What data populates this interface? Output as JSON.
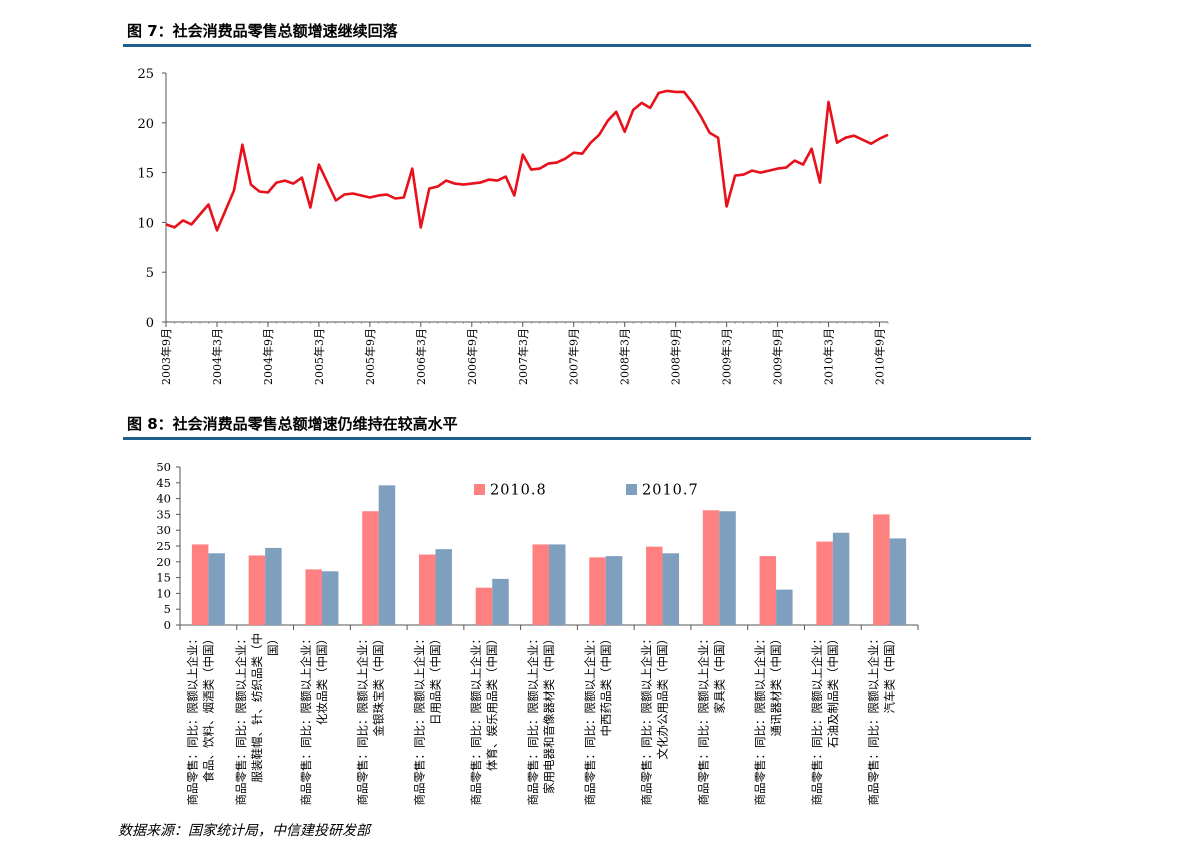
{
  "figure1": {
    "title": "图 7：社会消费品零售总额增速继续回落",
    "chart_data": {
      "type": "line",
      "color": "#e8101a",
      "ylim": [
        0,
        25
      ],
      "yticks": [
        0,
        5,
        10,
        15,
        20,
        25
      ],
      "x_tick_labels": [
        "2003年9月",
        "2004年3月",
        "2004年9月",
        "2005年3月",
        "2005年9月",
        "2006年3月",
        "2006年9月",
        "2007年3月",
        "2007年9月",
        "2008年3月",
        "2008年9月",
        "2009年3月",
        "2009年9月",
        "2010年3月",
        "2010年9月"
      ],
      "x_start": "2003年9月",
      "x_end": "2010年9月",
      "series": [
        {
          "values": [
            9.8,
            9.5,
            10.2,
            9.8,
            10.8,
            11.8,
            9.2,
            11.2,
            13.2,
            17.8,
            13.8,
            13.1,
            13.0,
            14.0,
            14.2,
            13.9,
            14.5,
            11.5,
            15.8,
            14.0,
            12.2,
            12.8,
            12.9,
            12.7,
            12.5,
            12.7,
            12.8,
            12.4,
            12.5,
            15.4,
            9.5,
            13.4,
            13.6,
            14.2,
            13.9,
            13.8,
            13.9,
            14.0,
            14.3,
            14.2,
            14.6,
            12.7,
            16.8,
            15.3,
            15.4,
            15.9,
            16.0,
            16.4,
            17.0,
            16.9,
            18.0,
            18.8,
            20.2,
            21.1,
            19.1,
            21.3,
            22.0,
            21.5,
            23.0,
            23.2,
            23.1,
            23.1,
            22.0,
            20.6,
            19.0,
            18.5,
            11.6,
            14.7,
            14.8,
            15.2,
            15.0,
            15.2,
            15.4,
            15.5,
            16.2,
            15.8,
            17.4,
            14.0,
            22.1,
            18.0,
            18.5,
            18.7,
            18.3,
            17.9,
            18.4,
            18.8
          ]
        }
      ]
    }
  },
  "figure2": {
    "title": "图 8：社会消费品零售总额增速仍维持在较高水平",
    "chart_data": {
      "type": "bar",
      "ylim": [
        0,
        50
      ],
      "yticks": [
        0,
        5,
        10,
        15,
        20,
        25,
        30,
        35,
        40,
        45,
        50
      ],
      "categories": [
        "商品零售:同比:限额以上企业:食品、饮料、烟酒类(中国)",
        "商品零售:同比:限额以上企业:服装鞋帽、针、纺织品类(中国)",
        "商品零售:同比:限额以上企业:化妆品类(中国)",
        "商品零售:同比:限额以上企业:金银珠宝类(中国)",
        "商品零售:同比:限额以上企业:日用品类(中国)",
        "商品零售:同比:限额以上企业:体育、娱乐用品类(中国)",
        "商品零售:同比:限额以上企业:家用电器和音像器材类(中国)",
        "商品零售:同比:限额以上企业:中西药品类(中国)",
        "商品零售:同比:限额以上企业:文化办公用品类(中国)",
        "商品零售:同比:限额以上企业:家具类(中国)",
        "商品零售:同比:限额以上企业:通讯器材类(中国)",
        "商品零售:同比:限额以上企业:石油及制品类(中国)",
        "商品零售:同比:限额以上企业:汽车类(中国)"
      ],
      "category_lines": [
        [
          "商品零售：同比：限额以上企业：",
          "食品、饮料、烟酒类（中国）"
        ],
        [
          "商品零售：同比：限额以上企业：",
          "服装鞋帽、针、纺织品类（中",
          "国）"
        ],
        [
          "商品零售：同比：限额以上企业：",
          "化妆品类（中国）"
        ],
        [
          "商品零售：同比：限额以上企业：",
          "金银珠宝类（中国）"
        ],
        [
          "商品零售：同比：限额以上企业：",
          "日用品类（中国）"
        ],
        [
          "商品零售：同比：限额以上企业：",
          "体育、娱乐用品类（中国）"
        ],
        [
          "商品零售：同比：限额以上企业：",
          "家用电器和音像器材类（中国）"
        ],
        [
          "商品零售：同比：限额以上企业：",
          "中西药品类（中国）"
        ],
        [
          "商品零售：同比：限额以上企业：",
          "文化办公用品类（中国）"
        ],
        [
          "商品零售：同比：限额以上企业：",
          "家具类（中国）"
        ],
        [
          "商品零售：同比：限额以上企业：",
          "通讯器材类（中国）"
        ],
        [
          "商品零售：同比：限额以上企业：",
          "石油及制品类（中国）"
        ],
        [
          "商品零售：同比：限额以上企业：",
          "汽车类（中国）"
        ]
      ],
      "series": [
        {
          "name": "2010.8",
          "color": "#ff8080",
          "values": [
            25.5,
            22.0,
            17.6,
            36.0,
            22.3,
            11.8,
            25.5,
            21.4,
            24.8,
            36.3,
            21.8,
            26.4,
            35.0
          ]
        },
        {
          "name": "2010.7",
          "color": "#7f9fbf",
          "values": [
            22.7,
            24.4,
            17.0,
            44.2,
            24.0,
            14.6,
            25.5,
            21.8,
            22.7,
            36.0,
            11.2,
            29.2,
            27.4
          ]
        }
      ],
      "legend_position": "top"
    }
  },
  "source_text": "数据来源：国家统计局，中信建投研发部"
}
